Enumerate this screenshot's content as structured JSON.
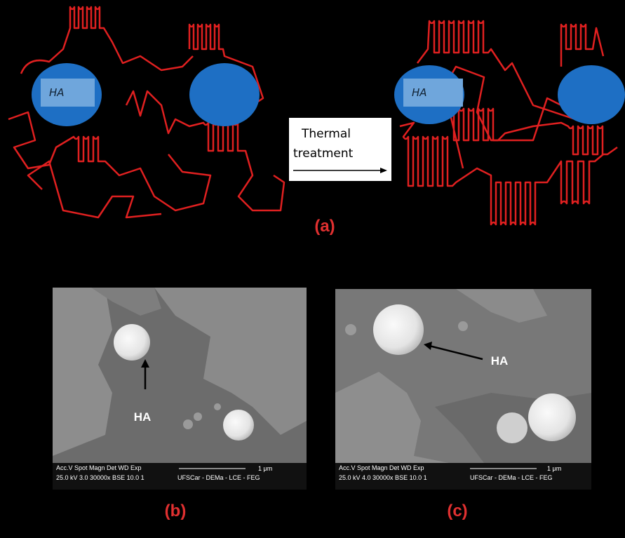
{
  "panel_a": {
    "label": "(a)",
    "before": {
      "particle_label": "HA"
    },
    "after": {
      "particle_label": "HA"
    },
    "arrow_label": [
      "Thermal",
      "treatment"
    ]
  },
  "panel_b": {
    "label": "(b)",
    "annotation": "HA",
    "info": {
      "header": "Acc.V  Spot Magn    Det  WD  Exp",
      "values": "25.0 kV 3.0  30000x  BSE  10.0  1",
      "scale": "1 μm",
      "lab": "UFSCar - DEMa - LCE - FEG"
    }
  },
  "panel_c": {
    "label": "(c)",
    "annotation": "HA",
    "info": {
      "header": "Acc.V  Spot Magn    Det  WD  Exp",
      "values": "25.0 kV 4.0  30000x  BSE  10.0  1",
      "scale": "1 μm",
      "lab": "UFSCar - DEMa - LCE - FEG"
    }
  }
}
